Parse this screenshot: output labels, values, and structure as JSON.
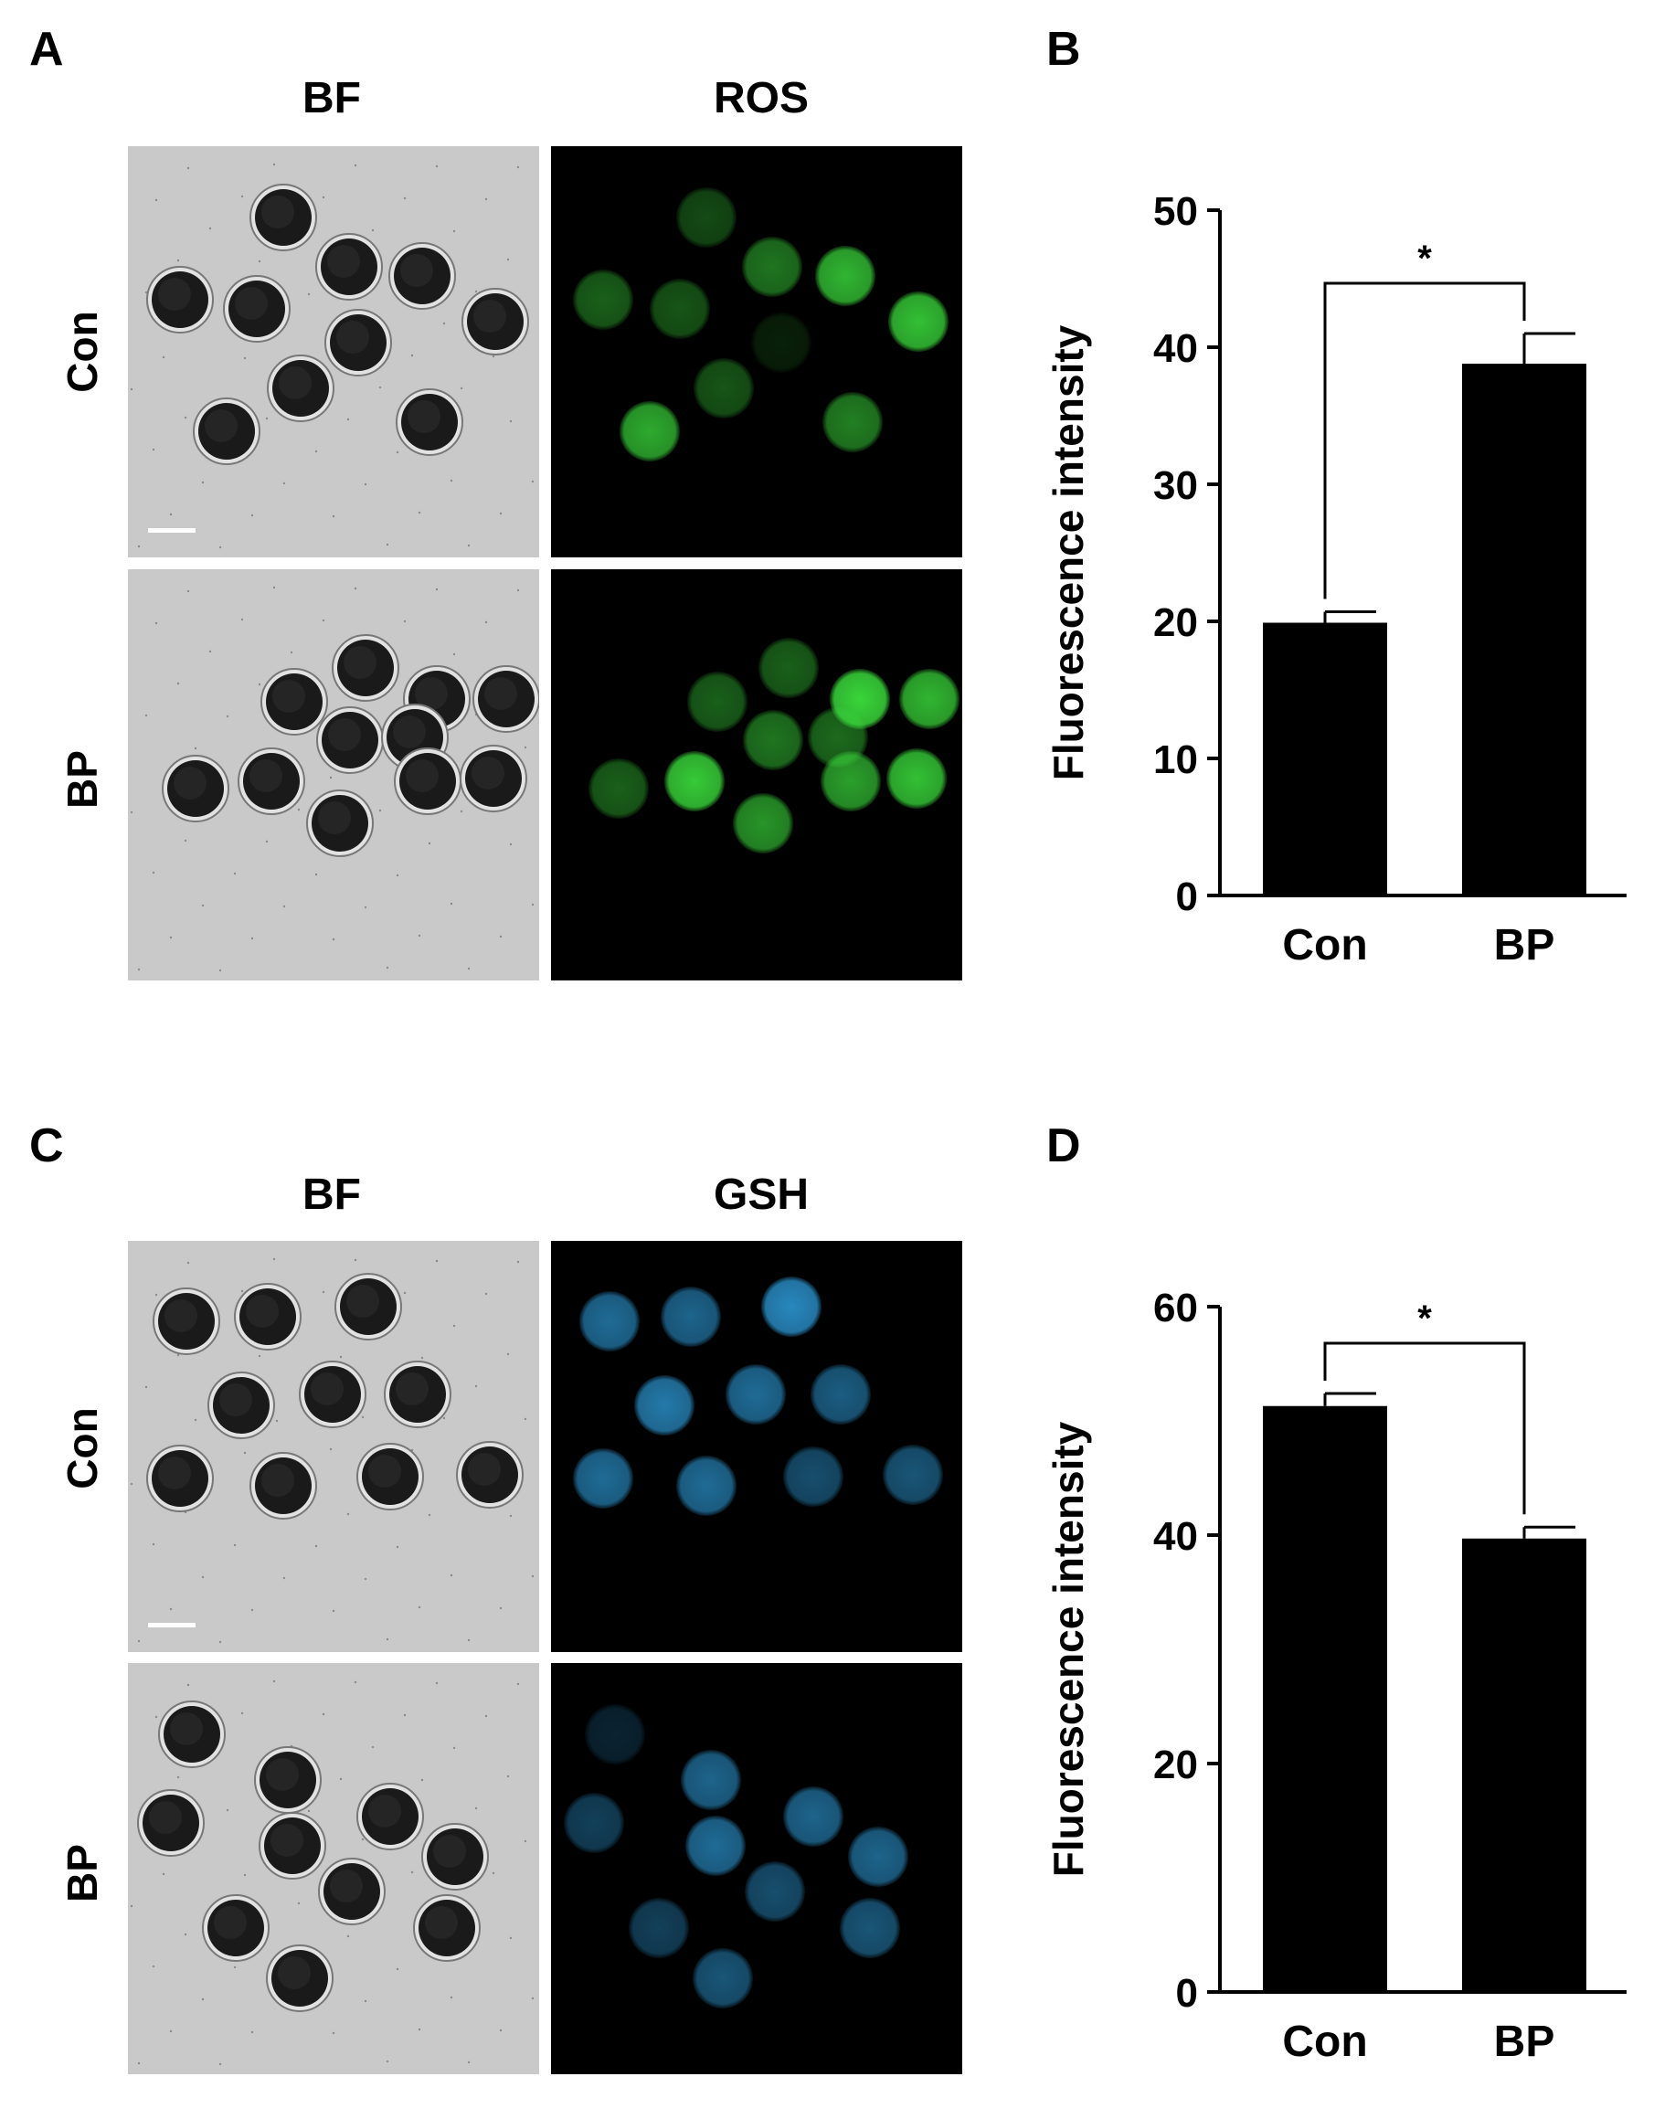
{
  "figure": {
    "panel_a": {
      "letter": "A",
      "col_bf": "BF",
      "col_stain": "ROS",
      "row_con": "Con",
      "row_bp": "BP"
    },
    "panel_b": {
      "letter": "B"
    },
    "panel_c": {
      "letter": "C",
      "col_bf": "BF",
      "col_stain": "GSH",
      "row_con": "Con",
      "row_bp": "BP"
    },
    "panel_d": {
      "letter": "D"
    }
  },
  "colors": {
    "bf_background": "#c9c9c9",
    "oocyte_dark": "#1a1a1a",
    "fluor_background": "#000000",
    "ros_green": "#39d53a",
    "gsh_blue": "#2a8fc8",
    "bar_fill": "#000000"
  },
  "chart_data": [
    {
      "type": "bar",
      "panel": "B",
      "categories": [
        "Con",
        "BP"
      ],
      "values": [
        19.9,
        38.8
      ],
      "errors": [
        0.8,
        2.2
      ],
      "ylabel": "Fluorescence intensity",
      "ylim": [
        0,
        50
      ],
      "yticks": [
        0,
        10,
        20,
        30,
        40,
        50
      ],
      "significance": "*"
    },
    {
      "type": "bar",
      "panel": "D",
      "categories": [
        "Con",
        "BP"
      ],
      "values": [
        51.3,
        39.7
      ],
      "errors": [
        1.1,
        1.0
      ],
      "ylabel": "Fluorescence intensity",
      "ylim": [
        0,
        60
      ],
      "yticks": [
        0,
        20,
        40,
        60
      ],
      "significance": "*"
    }
  ]
}
